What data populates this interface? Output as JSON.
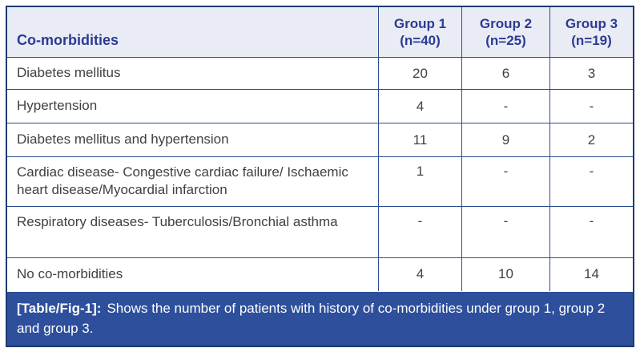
{
  "table": {
    "header": {
      "label": "Co-morbidities",
      "columns": [
        {
          "line1": "Group 1",
          "line2": "(n=40)"
        },
        {
          "line1": "Group 2",
          "line2": "(n=25)"
        },
        {
          "line1": "Group 3",
          "line2": "(n=19)"
        }
      ]
    },
    "rows": [
      {
        "label": "Diabetes mellitus",
        "values": [
          "20",
          "6",
          "3"
        ]
      },
      {
        "label": "Hypertension",
        "values": [
          "4",
          "-",
          "-"
        ]
      },
      {
        "label": "Diabetes mellitus and hypertension",
        "values": [
          "11",
          "9",
          "2"
        ]
      },
      {
        "label": "Cardiac disease- Congestive cardiac failure/ Ischaemic heart disease/Myocardial infarction",
        "values": [
          "1",
          "-",
          "-"
        ]
      },
      {
        "label": "Respiratory diseases- Tuberculosis/Bronchial asthma",
        "values": [
          "-",
          "-",
          "-"
        ]
      },
      {
        "label": "No co-morbidities",
        "values": [
          "4",
          "10",
          "14"
        ]
      }
    ],
    "caption": {
      "tag": "[Table/Fig-1]:",
      "text": "Shows the number of patients with history of co-morbidities under group 1, group 2 and group 3."
    }
  },
  "colors": {
    "header_background": "#eaecf5",
    "header_text": "#2b3b92",
    "grid_border": "#2b4e91",
    "outer_border": "#1e3a74",
    "caption_background": "#2d4f9c",
    "caption_text": "#ffffff",
    "body_text": "#414042"
  }
}
